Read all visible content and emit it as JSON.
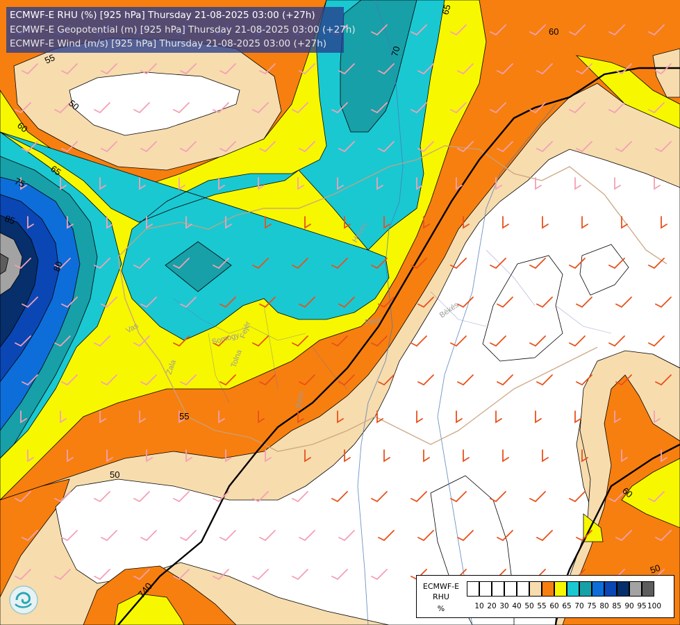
{
  "titles": [
    {
      "text": "ECMWF-E RHU (%) [925 hPa] Thursday 21-08-2025 03:00 (+27h)",
      "color": "#ffffff"
    },
    {
      "text": "ECMWF-E Geopotential (m) [925 hPa] Thursday 21-08-2025 03:00 (+27h)",
      "color": "#e6e6e6"
    },
    {
      "text": "ECMWF-E Wind (m/s) [925 hPa] Thursday 21-08-2025 03:00 (+27h)",
      "color": "#e6e6e6"
    }
  ],
  "legend": {
    "title_line1": "ECMWF-E",
    "title_line2": "RHU",
    "unit": "%",
    "bins": [
      {
        "label": "10",
        "color": "#ffffff"
      },
      {
        "label": "20",
        "color": "#ffffff"
      },
      {
        "label": "30",
        "color": "#ffffff"
      },
      {
        "label": "40",
        "color": "#ffffff"
      },
      {
        "label": "50",
        "color": "#ffffff"
      },
      {
        "label": "55",
        "color": "#f7dcae"
      },
      {
        "label": "60",
        "color": "#f77f0f"
      },
      {
        "label": "65",
        "color": "#f7f700"
      },
      {
        "label": "70",
        "color": "#1ac8d2"
      },
      {
        "label": "75",
        "color": "#17a0a8"
      },
      {
        "label": "80",
        "color": "#0d6ed9"
      },
      {
        "label": "85",
        "color": "#0a47b5"
      },
      {
        "label": "90",
        "color": "#062f6b"
      },
      {
        "label": "95",
        "color": "#a3a3a3"
      },
      {
        "label": "100",
        "color": "#5d5d5d"
      }
    ]
  },
  "contour_labels": [
    "55",
    "50",
    "60",
    "65",
    "75",
    "85",
    "80",
    "70",
    "65",
    "60",
    "55",
    "50",
    "60",
    "50",
    "740"
  ],
  "place_labels": [
    "Pest",
    "Békés",
    "Vas",
    "Zala",
    "Somogy",
    "Fejér",
    "Tolna",
    "Heves",
    "Bács"
  ],
  "colors": {
    "band_50": "#ffffff",
    "band_55": "#f7dcae",
    "band_60": "#f77f0f",
    "band_65": "#f7f700",
    "band_70": "#1ac8d2",
    "band_75": "#17a0a8",
    "band_80": "#0d6ed9",
    "band_85": "#0a47b5",
    "band_90": "#062f6b",
    "band_95": "#a3a3a3",
    "band_100": "#5d5d5d",
    "geopotential_line": "#000000",
    "wind_orange": "#e8501a",
    "wind_pink": "#f4a0b4"
  }
}
